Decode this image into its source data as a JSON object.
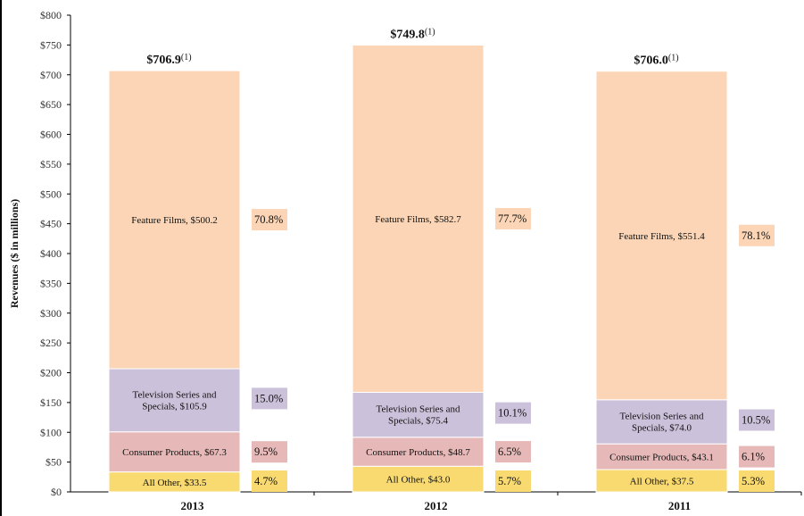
{
  "chart_data": {
    "type": "bar",
    "stacked": true,
    "title": "",
    "xlabel": "",
    "ylabel": "Revenues ($ in millions)",
    "ylim": [
      0,
      800
    ],
    "ytick_step": 50,
    "ytick_labels": [
      "$0",
      "$50",
      "$100",
      "$150",
      "$200",
      "$250",
      "$300",
      "$350",
      "$400",
      "$450",
      "$500",
      "$550",
      "$600",
      "$650",
      "$700",
      "$750",
      "$800"
    ],
    "grid": false,
    "legend": "none",
    "categories": [
      "2013",
      "2012",
      "2011"
    ],
    "totals": [
      706.9,
      749.8,
      706.0
    ],
    "total_labels": [
      "$706.9",
      "$749.8",
      "$706.0"
    ],
    "total_footnote": "(1)",
    "series": [
      {
        "name": "All Other",
        "color": "#F8DA70",
        "values": [
          33.5,
          43.0,
          37.5
        ],
        "labels": [
          "All Other,  $33.5",
          "All Other,  $43.0",
          "All Other,  $37.5"
        ],
        "percent_labels": [
          "4.7%",
          "5.7%",
          "5.3%"
        ]
      },
      {
        "name": "Consumer Products",
        "color": "#E6B9B8",
        "values": [
          67.3,
          48.7,
          43.1
        ],
        "labels": [
          "Consumer Products,  $67.3",
          "Consumer Products,  $48.7",
          "Consumer Products,  $43.1"
        ],
        "percent_labels": [
          "9.5%",
          "6.5%",
          "6.1%"
        ]
      },
      {
        "name": "Television Series and Specials",
        "color": "#CCC1DA",
        "values": [
          105.9,
          75.4,
          74.0
        ],
        "labels": [
          [
            "Television Series and",
            "Specials,  $105.9"
          ],
          [
            "Television Series and",
            "Specials,  $75.4"
          ],
          [
            "Television Series and",
            "Specials,  $74.0"
          ]
        ],
        "percent_labels": [
          "15.0%",
          "10.1%",
          "10.5%"
        ]
      },
      {
        "name": "Feature Films",
        "color": "#FBD5B5",
        "values": [
          500.2,
          582.7,
          551.4
        ],
        "labels": [
          "Feature Films,  $500.2",
          "Feature Films,  $582.7",
          "Feature Films,  $551.4"
        ],
        "percent_labels": [
          "70.8%",
          "77.7%",
          "78.1%"
        ]
      }
    ]
  }
}
